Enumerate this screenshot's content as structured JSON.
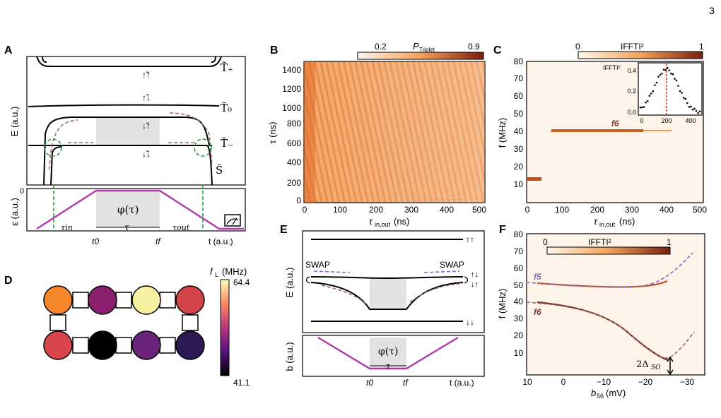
{
  "page_number": "3",
  "panel_labels": {
    "A": "A",
    "B": "B",
    "C": "C",
    "D": "D",
    "E": "E",
    "F": "F"
  },
  "panelA": {
    "energy_ylabel": "E (a.u.)",
    "eps_ylabel": "ε (a.u.)",
    "eps_zero": "0",
    "state_labels": [
      "T̃₊",
      "T̃₀",
      "T̃₋",
      "S̃"
    ],
    "arrow_labels": [
      "↑̃↑",
      "↑̃↓",
      "↓̃↑",
      "↓̃↓"
    ],
    "phi": "φ(τ)",
    "tau": "τ",
    "tau_in": "τin",
    "tau_out": "τout",
    "t0": "t0",
    "tf": "tf",
    "t_axis": "t (a.u.)"
  },
  "panelB": {
    "colorbar_label": "P",
    "colorbar_sub": "Triplet",
    "colorbar_ticks": [
      "0.2",
      "0.9"
    ],
    "ylabel": "τ (ns)",
    "xlabel": "τ",
    "xlabel_sub": "in,out",
    "xlabel_unit": "(ns)",
    "yticks": [
      "0",
      "200",
      "400",
      "600",
      "800",
      "1000",
      "1200",
      "1400"
    ],
    "xticks": [
      "0",
      "100",
      "200",
      "300",
      "400",
      "500"
    ]
  },
  "panelC": {
    "colorbar_label": "IFFTI²",
    "colorbar_ticks": [
      "0",
      "1"
    ],
    "ylabel": "f (MHz)",
    "xlabel": "τ",
    "xlabel_sub": "in,out",
    "xlabel_unit": "(ns)",
    "yticks": [
      "10",
      "20",
      "30",
      "40",
      "50",
      "60",
      "70",
      "80"
    ],
    "xticks": [
      "0",
      "100",
      "200",
      "300",
      "400",
      "500"
    ],
    "f6_label": "f6",
    "inset": {
      "ylabel": "IFFTI²",
      "yticks": [
        "0.0",
        "0.2",
        "0.4"
      ],
      "xticks": [
        "0",
        "200",
        "400"
      ]
    }
  },
  "panelD": {
    "colorbar_label": "f",
    "colorbar_sub": "L",
    "colorbar_unit": "(MHz)",
    "colorbar_max": "64.4",
    "colorbar_min": "41.1",
    "top_dots": [
      "#f5862a",
      "#8a1f6e",
      "#f6f1a0",
      "#d2434a"
    ],
    "bottom_dots": [
      "#d9454a",
      "#000000",
      "#6a2479",
      "#2c1a55"
    ]
  },
  "panelE": {
    "energy_ylabel": "E (a.u.)",
    "b_ylabel": "b (a.u.)",
    "swap_left": "SWAP",
    "swap_right": "SWAP",
    "spin_up_up": "↑↑",
    "spin_mixed": "↑↓",
    "spin_mixed2": "↓↑",
    "spin_down_down": "↓↓",
    "phi": "φ(τ)",
    "tau": "τ",
    "t0": "t0",
    "tf": "tf",
    "t_axis": "t (a.u.)"
  },
  "panelF": {
    "colorbar_label": "IFFTI²",
    "colorbar_ticks": [
      "0",
      "1"
    ],
    "ylabel": "f (MHz)",
    "xlabel": "b",
    "xlabel_sub": "56",
    "xlabel_unit": "(mV)",
    "yticks": [
      "10",
      "20",
      "30",
      "40",
      "50",
      "60",
      "70",
      "80"
    ],
    "xticks": [
      "10",
      "0",
      "−10",
      "−20",
      "−30"
    ],
    "f5_label": "f5",
    "f6_label": "f6",
    "delta_label": "2Δ",
    "delta_sub": "SO"
  }
}
